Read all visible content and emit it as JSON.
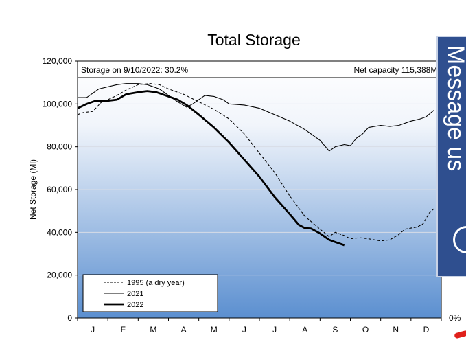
{
  "chart_data": {
    "type": "line",
    "title": "Total Storage",
    "ylabel": "Net Storage (Ml)",
    "xlabel": "",
    "x_categories": [
      "J",
      "F",
      "M",
      "A",
      "M",
      "J",
      "J",
      "A",
      "S",
      "O",
      "N",
      "D"
    ],
    "x_range_months": [
      0,
      12
    ],
    "ylim": [
      0,
      120000
    ],
    "yticks": [
      0,
      20000,
      40000,
      60000,
      80000,
      100000,
      120000
    ],
    "ytick_labels": [
      "0",
      "20,000",
      "40,000",
      "60,000",
      "80,000",
      "100,000",
      "120,000"
    ],
    "capacity": 115388,
    "annotations": {
      "storage_note": "Storage on 9/10/2022: 30.2%",
      "capacity_note": "Net capacity 115,388Ml"
    },
    "legend_position": "bottom-left",
    "grid": "horizontal",
    "series": [
      {
        "name": "1995 (a dry year)",
        "style": "dashed",
        "points": [
          [
            0,
            95000
          ],
          [
            0.2,
            96000
          ],
          [
            0.5,
            96500
          ],
          [
            0.8,
            101000
          ],
          [
            1.0,
            102000
          ],
          [
            1.3,
            104000
          ],
          [
            1.6,
            106500
          ],
          [
            2.0,
            109000
          ],
          [
            2.4,
            109500
          ],
          [
            2.7,
            109000
          ],
          [
            3.0,
            107000
          ],
          [
            3.5,
            104500
          ],
          [
            4.0,
            101000
          ],
          [
            4.5,
            97500
          ],
          [
            5.0,
            93000
          ],
          [
            5.5,
            86000
          ],
          [
            6.0,
            77000
          ],
          [
            6.5,
            68000
          ],
          [
            7.0,
            57000
          ],
          [
            7.5,
            47500
          ],
          [
            8.0,
            41500
          ],
          [
            8.3,
            38000
          ],
          [
            8.5,
            40000
          ],
          [
            8.8,
            38500
          ],
          [
            9.0,
            37000
          ],
          [
            9.3,
            37500
          ],
          [
            9.6,
            37000
          ],
          [
            10.0,
            36000
          ],
          [
            10.3,
            36500
          ],
          [
            10.6,
            39000
          ],
          [
            10.8,
            41500
          ],
          [
            11.0,
            42000
          ],
          [
            11.2,
            42500
          ],
          [
            11.4,
            44000
          ],
          [
            11.6,
            49000
          ],
          [
            11.75,
            51000
          ]
        ]
      },
      {
        "name": "2021",
        "style": "solid-thin",
        "points": [
          [
            0,
            103000
          ],
          [
            0.3,
            103000
          ],
          [
            0.5,
            105000
          ],
          [
            0.7,
            107000
          ],
          [
            1.0,
            108000
          ],
          [
            1.3,
            109000
          ],
          [
            1.6,
            109500
          ],
          [
            2.0,
            109500
          ],
          [
            2.3,
            109000
          ],
          [
            2.7,
            107000
          ],
          [
            3.0,
            104000
          ],
          [
            3.3,
            101000
          ],
          [
            3.6,
            98500
          ],
          [
            3.8,
            100000
          ],
          [
            4.0,
            102000
          ],
          [
            4.2,
            104000
          ],
          [
            4.5,
            103500
          ],
          [
            4.8,
            102000
          ],
          [
            5.0,
            100000
          ],
          [
            5.5,
            99500
          ],
          [
            6.0,
            98000
          ],
          [
            6.5,
            95000
          ],
          [
            7.0,
            92000
          ],
          [
            7.5,
            88000
          ],
          [
            8.0,
            83000
          ],
          [
            8.3,
            78000
          ],
          [
            8.5,
            80000
          ],
          [
            8.8,
            81000
          ],
          [
            9.0,
            80500
          ],
          [
            9.2,
            84000
          ],
          [
            9.4,
            86000
          ],
          [
            9.6,
            89000
          ],
          [
            10.0,
            90000
          ],
          [
            10.3,
            89500
          ],
          [
            10.6,
            90000
          ],
          [
            11.0,
            92000
          ],
          [
            11.3,
            93000
          ],
          [
            11.5,
            94000
          ],
          [
            11.75,
            97000
          ]
        ]
      },
      {
        "name": "2022",
        "style": "solid-thick",
        "points": [
          [
            0,
            98000
          ],
          [
            0.3,
            100000
          ],
          [
            0.6,
            101500
          ],
          [
            1.0,
            101500
          ],
          [
            1.3,
            102000
          ],
          [
            1.6,
            104500
          ],
          [
            2.0,
            105500
          ],
          [
            2.3,
            106000
          ],
          [
            2.6,
            105500
          ],
          [
            3.0,
            103500
          ],
          [
            3.3,
            102000
          ],
          [
            3.6,
            99500
          ],
          [
            4.0,
            95000
          ],
          [
            4.5,
            89000
          ],
          [
            5.0,
            82000
          ],
          [
            5.5,
            74000
          ],
          [
            6.0,
            66000
          ],
          [
            6.5,
            56500
          ],
          [
            7.0,
            48500
          ],
          [
            7.3,
            43500
          ],
          [
            7.5,
            42000
          ],
          [
            7.7,
            41800
          ],
          [
            8.0,
            39500
          ],
          [
            8.3,
            36500
          ],
          [
            8.5,
            35500
          ],
          [
            8.8,
            34000
          ]
        ]
      }
    ]
  },
  "widget": {
    "message_label": "Message us"
  },
  "right_axis": {
    "label": "0%"
  }
}
